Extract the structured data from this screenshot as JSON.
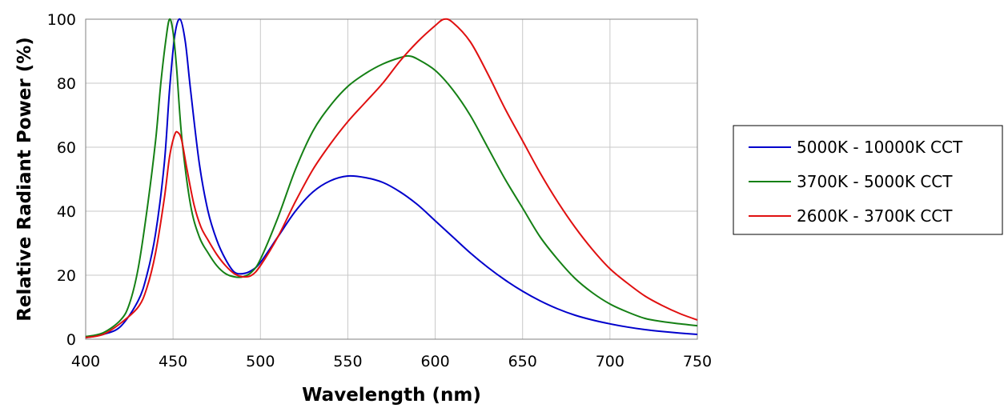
{
  "chart_data": {
    "type": "line",
    "title": "",
    "xlabel": "Wavelength (nm)",
    "ylabel": "Relative Radiant Power (%)",
    "xlim": [
      400,
      750
    ],
    "ylim": [
      0,
      100
    ],
    "x_ticks": [
      "400",
      "450",
      "500",
      "550",
      "600",
      "650",
      "700",
      "750"
    ],
    "y_ticks": [
      "0",
      "20",
      "40",
      "60",
      "80",
      "100"
    ],
    "grid": true,
    "legend_position": "right",
    "series": [
      {
        "name": "5000K - 10000K CCT",
        "color": "#0000cc",
        "x": [
          400,
          410,
          420,
          430,
          435,
          440,
          445,
          448,
          451,
          454,
          457,
          460,
          465,
          470,
          475,
          480,
          485,
          490,
          495,
          500,
          510,
          520,
          530,
          540,
          550,
          560,
          570,
          580,
          590,
          600,
          610,
          620,
          630,
          640,
          650,
          660,
          670,
          680,
          690,
          700,
          710,
          720,
          730,
          740,
          750
        ],
        "y": [
          0.5,
          1.5,
          4,
          12,
          20,
          33,
          55,
          78,
          95,
          100,
          93,
          78,
          55,
          40,
          31,
          25,
          21,
          20.5,
          21.5,
          24,
          32,
          40,
          46,
          49.5,
          51,
          50.5,
          49,
          46,
          42,
          37,
          32,
          27,
          22.5,
          18.5,
          15,
          12,
          9.5,
          7.5,
          6,
          4.8,
          3.8,
          3,
          2.4,
          1.9,
          1.5
        ]
      },
      {
        "name": "3700K - 5000K CCT",
        "color": "#158015",
        "x": [
          400,
          410,
          420,
          425,
          430,
          435,
          440,
          443,
          446,
          448,
          450,
          452,
          455,
          460,
          465,
          470,
          475,
          480,
          485,
          490,
          495,
          500,
          510,
          520,
          530,
          540,
          550,
          560,
          570,
          580,
          585,
          590,
          600,
          610,
          620,
          630,
          640,
          650,
          660,
          670,
          680,
          690,
          700,
          710,
          720,
          730,
          740,
          750
        ],
        "y": [
          0.8,
          2,
          6,
          11,
          22,
          40,
          62,
          80,
          94,
          100,
          96,
          85,
          63,
          42,
          32,
          27,
          23,
          20.5,
          19.5,
          19.5,
          21,
          25,
          38,
          53,
          65,
          73,
          79,
          83,
          86,
          88,
          88.5,
          87.5,
          84,
          78,
          70,
          60,
          50,
          41,
          32,
          25,
          19,
          14.5,
          11,
          8.5,
          6.5,
          5.5,
          4.8,
          4.2
        ]
      },
      {
        "name": "2600K - 3700K CCT",
        "color": "#e01010",
        "x": [
          400,
          410,
          420,
          430,
          435,
          440,
          445,
          448,
          451,
          453,
          455,
          458,
          462,
          466,
          470,
          475,
          480,
          485,
          490,
          495,
          500,
          510,
          520,
          530,
          540,
          550,
          560,
          570,
          580,
          590,
          600,
          605,
          610,
          620,
          630,
          640,
          650,
          660,
          670,
          680,
          690,
          700,
          710,
          720,
          730,
          740,
          750
        ],
        "y": [
          0.5,
          1.5,
          5,
          10,
          16,
          27,
          44,
          57,
          64,
          64.5,
          62,
          53,
          42,
          35,
          31,
          26.5,
          23,
          20.5,
          19.5,
          20,
          23,
          32,
          43,
          53,
          61,
          68,
          74,
          80,
          87,
          93,
          98,
          100,
          99,
          93,
          83,
          72,
          62,
          52,
          43,
          35,
          28,
          22,
          17.5,
          13.5,
          10.5,
          8,
          6
        ]
      }
    ]
  }
}
